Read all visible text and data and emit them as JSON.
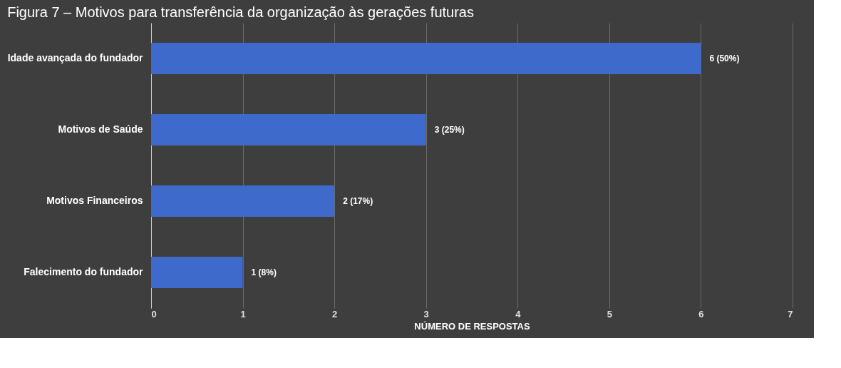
{
  "chart_data": {
    "type": "bar",
    "orientation": "horizontal",
    "title": "Figura 7 – Motivos para transferência da organização às gerações futuras",
    "xlabel": "NÚMERO DE RESPOSTAS",
    "categories": [
      "Idade avançada do fundador",
      "Motivos de Saúde",
      "Motivos Financeiros",
      "Falecimento do fundador"
    ],
    "values": [
      6,
      3,
      2,
      1
    ],
    "value_labels": [
      "6 (50%)",
      "3 (25%)",
      "2 (17%)",
      "1 (8%)"
    ],
    "color": "#3d6acb",
    "xlim": [
      0,
      7
    ],
    "xticks": [
      0,
      1,
      2,
      3,
      4,
      5,
      6,
      7
    ],
    "grid": "x"
  }
}
